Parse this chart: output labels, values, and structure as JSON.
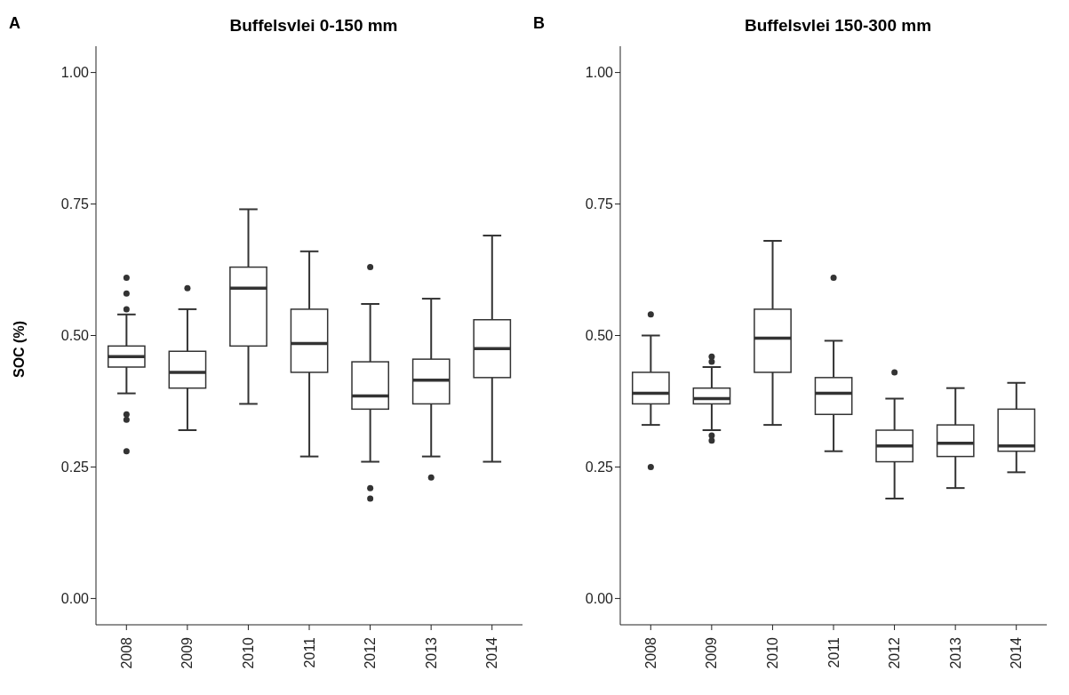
{
  "chart_data": [
    {
      "type": "box",
      "title": "Buffelsvlei 0-150 mm",
      "ylabel": "SOC (%)",
      "annotations": [
        "A"
      ],
      "categories": [
        "2008",
        "2009",
        "2010",
        "2011",
        "2012",
        "2013",
        "2014"
      ],
      "ylim": [
        -0.05,
        1.05
      ],
      "yticks": [
        {
          "value": 0,
          "label": "0.00"
        },
        {
          "value": 0.25,
          "label": "0.25"
        },
        {
          "value": 0.5,
          "label": "0.50"
        },
        {
          "value": 0.75,
          "label": "0.75"
        },
        {
          "value": 1,
          "label": "1.00"
        }
      ],
      "grid": false,
      "color": "#333333",
      "boxes": [
        {
          "low": 0.39,
          "q1": 0.44,
          "median": 0.46,
          "q3": 0.48,
          "high": 0.54,
          "outliers": [
            0.61,
            0.58,
            0.55,
            0.35,
            0.34,
            0.28
          ]
        },
        {
          "low": 0.32,
          "q1": 0.4,
          "median": 0.43,
          "q3": 0.47,
          "high": 0.55,
          "outliers": [
            0.59
          ]
        },
        {
          "low": 0.37,
          "q1": 0.48,
          "median": 0.59,
          "q3": 0.63,
          "high": 0.74
        },
        {
          "low": 0.27,
          "q1": 0.43,
          "median": 0.485,
          "q3": 0.55,
          "high": 0.66
        },
        {
          "low": 0.26,
          "q1": 0.36,
          "median": 0.385,
          "q3": 0.45,
          "high": 0.56,
          "outliers": [
            0.63,
            0.21,
            0.19
          ]
        },
        {
          "low": 0.27,
          "q1": 0.37,
          "median": 0.415,
          "q3": 0.455,
          "high": 0.57,
          "outliers": [
            0.23
          ]
        },
        {
          "low": 0.26,
          "q1": 0.42,
          "median": 0.475,
          "q3": 0.53,
          "high": 0.69
        }
      ]
    },
    {
      "type": "box",
      "title": "Buffelsvlei 150-300 mm",
      "annotations": [
        "B"
      ],
      "categories": [
        "2008",
        "2009",
        "2010",
        "2011",
        "2012",
        "2013",
        "2014"
      ],
      "ylim": [
        -0.05,
        1.05
      ],
      "yticks": [
        {
          "value": 0,
          "label": "0.00"
        },
        {
          "value": 0.25,
          "label": "0.25"
        },
        {
          "value": 0.5,
          "label": "0.50"
        },
        {
          "value": 0.75,
          "label": "0.75"
        },
        {
          "value": 1,
          "label": "1.00"
        }
      ],
      "grid": false,
      "color": "#333333",
      "boxes": [
        {
          "low": 0.33,
          "q1": 0.37,
          "median": 0.39,
          "q3": 0.43,
          "high": 0.5,
          "outliers": [
            0.54,
            0.25
          ]
        },
        {
          "low": 0.32,
          "q1": 0.37,
          "median": 0.38,
          "q3": 0.4,
          "high": 0.44,
          "outliers": [
            0.46,
            0.45,
            0.31,
            0.3
          ]
        },
        {
          "low": 0.33,
          "q1": 0.43,
          "median": 0.495,
          "q3": 0.55,
          "high": 0.68
        },
        {
          "low": 0.28,
          "q1": 0.35,
          "median": 0.39,
          "q3": 0.42,
          "high": 0.49,
          "outliers": [
            0.61
          ]
        },
        {
          "low": 0.19,
          "q1": 0.26,
          "median": 0.29,
          "q3": 0.32,
          "high": 0.38,
          "outliers": [
            0.43
          ]
        },
        {
          "low": 0.21,
          "q1": 0.27,
          "median": 0.295,
          "q3": 0.33,
          "high": 0.4
        },
        {
          "low": 0.24,
          "q1": 0.28,
          "median": 0.29,
          "q3": 0.36,
          "high": 0.41
        }
      ]
    }
  ]
}
